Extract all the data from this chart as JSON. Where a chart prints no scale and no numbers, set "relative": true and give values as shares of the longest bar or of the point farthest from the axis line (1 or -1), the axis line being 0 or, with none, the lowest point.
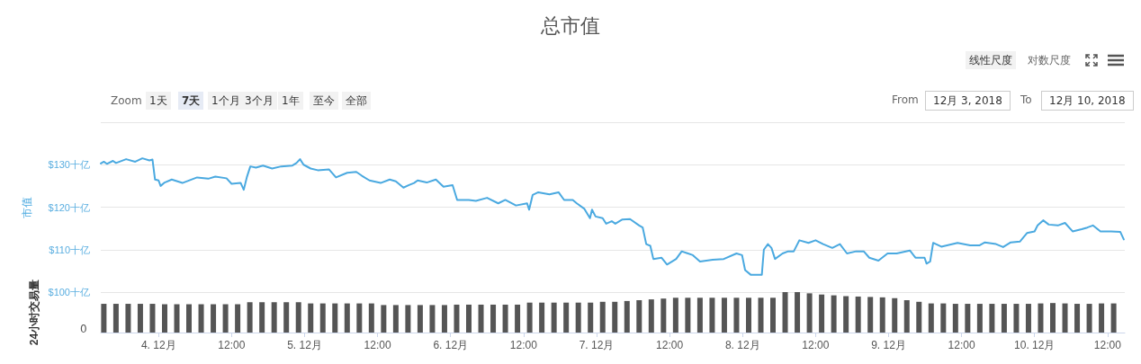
{
  "chart_data": [
    {
      "type": "line",
      "title": "总市值",
      "ylabel": "市值",
      "tick_labels": "y",
      "grid": "y",
      "marker": "none",
      "line_style": "solid",
      "annotations": [
        "线性尺度",
        "对数尺度",
        "Zoom",
        "1天",
        "7天",
        "1个月",
        "3个月",
        "1年",
        "至今",
        "全部",
        "From",
        "12月 3, 2018",
        "To",
        "12月 10, 2018"
      ],
      "xlim": [
        "2018-12-03T14:30",
        "2018-12-10T14:50"
      ],
      "ylim": [
        100,
        140
      ],
      "yticks": [
        {
          "value": 100,
          "label": "$100十亿"
        },
        {
          "value": 110,
          "label": "$110十亿"
        },
        {
          "value": 120,
          "label": "$120十亿"
        },
        {
          "value": 130,
          "label": "$130十亿"
        },
        {
          "value": 140,
          "label": null
        }
      ],
      "series": [
        {
          "color": "#4aa9e0",
          "x": [
            "2018-12-03T14:30",
            "2018-12-03T15:00",
            "2018-12-03T15:30",
            "2018-12-03T16:30",
            "2018-12-03T17:00",
            "2018-12-03T18:40",
            "2018-12-03T20:10",
            "2018-12-03T21:20",
            "2018-12-03T22:30",
            "2018-12-03T23:00",
            "2018-12-03T23:25",
            "2018-12-04T00:00",
            "2018-12-04T00:20",
            "2018-12-04T01:00",
            "2018-12-04T02:10",
            "2018-12-04T03:55",
            "2018-12-04T06:20",
            "2018-12-04T08:10",
            "2018-12-04T09:20",
            "2018-12-04T11:10",
            "2018-12-04T12:00",
            "2018-12-04T13:30",
            "2018-12-04T14:00",
            "2018-12-04T14:30",
            "2018-12-04T15:05",
            "2018-12-04T16:00",
            "2018-12-04T17:10",
            "2018-12-04T18:40",
            "2018-12-04T20:10",
            "2018-12-04T22:00",
            "2018-12-04T22:40",
            "2018-12-04T23:15",
            "2018-12-04T23:50",
            "2018-12-05T01:00",
            "2018-12-05T02:10",
            "2018-12-05T04:00",
            "2018-12-05T05:10",
            "2018-12-05T07:00",
            "2018-12-05T08:30",
            "2018-12-05T09:25",
            "2018-12-05T10:40",
            "2018-12-05T12:30",
            "2018-12-05T14:00",
            "2018-12-05T15:00",
            "2018-12-05T16:15",
            "2018-12-05T17:10",
            "2018-12-05T18:00",
            "2018-12-05T18:35",
            "2018-12-05T20:05",
            "2018-12-05T21:35",
            "2018-12-05T22:50",
            "2018-12-06T00:20",
            "2018-12-06T01:05",
            "2018-12-06T03:00",
            "2018-12-06T04:10",
            "2018-12-06T06:00",
            "2018-12-06T07:50",
            "2018-12-06T09:00",
            "2018-12-06T10:45",
            "2018-12-06T12:35",
            "2018-12-06T12:55",
            "2018-12-06T13:30",
            "2018-12-06T14:25",
            "2018-12-06T16:15",
            "2018-12-06T17:45",
            "2018-12-06T18:40",
            "2018-12-06T20:05",
            "2018-12-06T20:45",
            "2018-12-06T22:00",
            "2018-12-06T22:55",
            "2018-12-06T23:15",
            "2018-12-06T23:50",
            "2018-12-07T01:00",
            "2018-12-07T01:35",
            "2018-12-07T02:30",
            "2018-12-07T03:05",
            "2018-12-07T04:15",
            "2018-12-07T05:30",
            "2018-12-07T07:00",
            "2018-12-07T07:35",
            "2018-12-07T08:10",
            "2018-12-07T08:50",
            "2018-12-07T09:20",
            "2018-12-07T10:40",
            "2018-12-07T11:35",
            "2018-12-07T13:05",
            "2018-12-07T14:00",
            "2018-12-07T15:50",
            "2018-12-07T17:00",
            "2018-12-07T19:05",
            "2018-12-07T20:55",
            "2018-12-07T23:00",
            "2018-12-07T23:55",
            "2018-12-08T00:25",
            "2018-12-08T01:20",
            "2018-12-08T03:10",
            "2018-12-08T03:30",
            "2018-12-08T04:10",
            "2018-12-08T04:45",
            "2018-12-08T05:20",
            "2018-12-08T06:35",
            "2018-12-08T07:30",
            "2018-12-08T08:25",
            "2018-12-08T09:20",
            "2018-12-08T10:50",
            "2018-12-08T12:00",
            "2018-12-08T13:15",
            "2018-12-08T14:45",
            "2018-12-08T16:00",
            "2018-12-08T17:10",
            "2018-12-08T18:40",
            "2018-12-08T19:55",
            "2018-12-08T20:50",
            "2018-12-08T22:20",
            "2018-12-08T23:50",
            "2018-12-09T01:20",
            "2018-12-09T03:30",
            "2018-12-09T04:25",
            "2018-12-09T05:55",
            "2018-12-09T06:15",
            "2018-12-09T06:50",
            "2018-12-09T07:20",
            "2018-12-09T08:40",
            "2018-12-09T11:20",
            "2018-12-09T13:25",
            "2018-12-09T14:55",
            "2018-12-09T15:50",
            "2018-12-09T17:40",
            "2018-12-09T18:50",
            "2018-12-09T20:05",
            "2018-12-09T21:35",
            "2018-12-09T22:45",
            "2018-12-10T00:00",
            "2018-12-10T00:30",
            "2018-12-10T01:25",
            "2018-12-10T02:20",
            "2018-12-10T03:50",
            "2018-12-10T05:00",
            "2018-12-10T06:15",
            "2018-12-10T07:45",
            "2018-12-10T08:40",
            "2018-12-10T09:35",
            "2018-12-10T10:50",
            "2018-12-10T12:35",
            "2018-12-10T14:05",
            "2018-12-10T14:40"
          ],
          "values": [
            130.3,
            130.7,
            130.2,
            130.9,
            130.4,
            131.3,
            130.7,
            131.5,
            131.0,
            131.2,
            126.5,
            126.3,
            125.0,
            125.8,
            126.5,
            125.7,
            127.0,
            126.7,
            127.2,
            126.8,
            125.5,
            125.7,
            124.1,
            127.0,
            129.6,
            129.3,
            129.8,
            129.1,
            129.6,
            129.8,
            130.4,
            131.3,
            130.0,
            129.1,
            128.7,
            128.9,
            127.0,
            128.1,
            128.3,
            127.4,
            126.3,
            125.7,
            126.5,
            126.1,
            124.6,
            125.2,
            125.7,
            126.3,
            125.8,
            126.5,
            124.8,
            125.2,
            121.7,
            121.7,
            121.5,
            122.2,
            120.9,
            121.7,
            120.4,
            120.9,
            119.4,
            122.9,
            123.5,
            123.0,
            123.5,
            121.7,
            121.7,
            120.9,
            119.6,
            117.4,
            119.4,
            117.8,
            117.4,
            116.1,
            116.7,
            116.1,
            117.1,
            117.2,
            115.7,
            115.2,
            111.3,
            110.9,
            107.8,
            108.1,
            106.5,
            107.8,
            109.6,
            108.7,
            107.2,
            107.6,
            107.8,
            109.1,
            108.7,
            105.2,
            104.1,
            104.1,
            110.0,
            111.3,
            110.4,
            107.8,
            109.1,
            109.6,
            109.6,
            112.2,
            111.6,
            112.2,
            111.3,
            110.4,
            111.3,
            109.1,
            109.6,
            109.6,
            108.1,
            107.4,
            109.1,
            109.1,
            109.8,
            108.1,
            108.1,
            106.7,
            107.2,
            111.6,
            110.7,
            111.6,
            111.0,
            111.0,
            111.7,
            111.3,
            110.6,
            111.7,
            111.9,
            113.9,
            114.3,
            115.7,
            116.9,
            115.9,
            115.7,
            116.3,
            114.3,
            114.8,
            115.2,
            115.7,
            114.3,
            114.3,
            114.2,
            112.4
          ]
        }
      ]
    },
    {
      "type": "bar",
      "ylabel": "24小时交易量",
      "relative": true,
      "tick_labels": "x",
      "grid": false,
      "annotations": [
        "0"
      ],
      "xlim": [
        "2018-12-03T14:30",
        "2018-12-10T14:50"
      ],
      "xticks": [
        {
          "value": "2018-12-04",
          "label": "4. 12月"
        },
        {
          "value": "2018-12-04T12:00",
          "label": "12:00"
        },
        {
          "value": "2018-12-05",
          "label": "5. 12月"
        },
        {
          "value": "2018-12-05T12:00",
          "label": "12:00"
        },
        {
          "value": "2018-12-06",
          "label": "6. 12月"
        },
        {
          "value": "2018-12-06T12:00",
          "label": "12:00"
        },
        {
          "value": "2018-12-07",
          "label": "7. 12月"
        },
        {
          "value": "2018-12-07T12:00",
          "label": "12:00"
        },
        {
          "value": "2018-12-08",
          "label": "8. 12月"
        },
        {
          "value": "2018-12-08T12:00",
          "label": "12:00"
        },
        {
          "value": "2018-12-09",
          "label": "9. 12月"
        },
        {
          "value": "2018-12-09T12:00",
          "label": "12:00"
        },
        {
          "value": "2018-12-10",
          "label": "10. 12月"
        },
        {
          "value": "2018-12-10T12:00",
          "label": "12:00"
        }
      ],
      "series": [
        {
          "color": "#555555",
          "x": [
            "2018-12-03T15:00",
            "2018-12-03T17:00",
            "2018-12-03T19:00",
            "2018-12-03T21:00",
            "2018-12-03T23:00",
            "2018-12-04T01:00",
            "2018-12-04T03:00",
            "2018-12-04T05:00",
            "2018-12-04T07:00",
            "2018-12-04T09:00",
            "2018-12-04T11:00",
            "2018-12-04T13:00",
            "2018-12-04T15:00",
            "2018-12-04T17:00",
            "2018-12-04T19:00",
            "2018-12-04T21:00",
            "2018-12-04T23:00",
            "2018-12-05T01:00",
            "2018-12-05T03:00",
            "2018-12-05T05:00",
            "2018-12-05T07:00",
            "2018-12-05T09:00",
            "2018-12-05T11:00",
            "2018-12-05T13:00",
            "2018-12-05T15:00",
            "2018-12-05T17:00",
            "2018-12-05T19:00",
            "2018-12-05T21:00",
            "2018-12-05T23:00",
            "2018-12-06T01:00",
            "2018-12-06T03:00",
            "2018-12-06T05:00",
            "2018-12-06T07:00",
            "2018-12-06T09:00",
            "2018-12-06T11:00",
            "2018-12-06T13:00",
            "2018-12-06T15:00",
            "2018-12-06T17:00",
            "2018-12-06T19:00",
            "2018-12-06T21:00",
            "2018-12-06T23:00",
            "2018-12-07T01:00",
            "2018-12-07T03:00",
            "2018-12-07T05:00",
            "2018-12-07T07:00",
            "2018-12-07T09:00",
            "2018-12-07T11:00",
            "2018-12-07T13:00",
            "2018-12-07T15:00",
            "2018-12-07T17:00",
            "2018-12-07T19:00",
            "2018-12-07T21:00",
            "2018-12-07T23:00",
            "2018-12-08T01:00",
            "2018-12-08T03:00",
            "2018-12-08T05:00",
            "2018-12-08T07:00",
            "2018-12-08T09:00",
            "2018-12-08T11:00",
            "2018-12-08T13:00",
            "2018-12-08T15:00",
            "2018-12-08T17:00",
            "2018-12-08T19:00",
            "2018-12-08T21:00",
            "2018-12-08T23:00",
            "2018-12-09T01:00",
            "2018-12-09T03:00",
            "2018-12-09T05:00",
            "2018-12-09T07:00",
            "2018-12-09T09:00",
            "2018-12-09T11:00",
            "2018-12-09T13:00",
            "2018-12-09T15:00",
            "2018-12-09T17:00",
            "2018-12-09T19:00",
            "2018-12-09T21:00",
            "2018-12-09T23:00",
            "2018-12-10T01:00",
            "2018-12-10T03:00",
            "2018-12-10T05:00",
            "2018-12-10T07:00",
            "2018-12-10T09:00",
            "2018-12-10T11:00",
            "2018-12-10T13:00"
          ],
          "values": [
            0.71,
            0.71,
            0.71,
            0.71,
            0.71,
            0.7,
            0.7,
            0.7,
            0.7,
            0.7,
            0.7,
            0.7,
            0.75,
            0.75,
            0.75,
            0.75,
            0.75,
            0.72,
            0.72,
            0.72,
            0.72,
            0.72,
            0.72,
            0.68,
            0.68,
            0.68,
            0.68,
            0.68,
            0.68,
            0.69,
            0.69,
            0.69,
            0.69,
            0.69,
            0.69,
            0.74,
            0.74,
            0.74,
            0.74,
            0.74,
            0.74,
            0.76,
            0.76,
            0.78,
            0.8,
            0.82,
            0.84,
            0.86,
            0.86,
            0.86,
            0.86,
            0.86,
            0.86,
            0.86,
            0.86,
            0.86,
            1.0,
            1.0,
            0.97,
            0.94,
            0.92,
            0.9,
            0.89,
            0.88,
            0.87,
            0.85,
            0.8,
            0.76,
            0.72,
            0.72,
            0.71,
            0.71,
            0.71,
            0.71,
            0.71,
            0.71,
            0.71,
            0.72,
            0.73,
            0.72,
            0.71,
            0.71,
            0.72,
            0.72
          ]
        }
      ]
    }
  ]
}
